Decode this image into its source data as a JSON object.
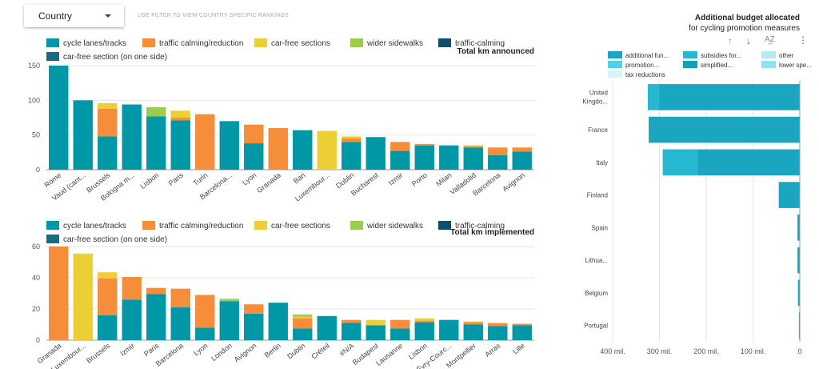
{
  "filter": {
    "label": "Country",
    "hint": "USE FILTER TO VIEW COUNTRY SPECIFIC RANKINGS"
  },
  "colors": {
    "cycle": "#0097a7",
    "calming": "#f68d3b",
    "carfree": "#ecce35",
    "sidewalks": "#9ccc4d",
    "tcalming": "#0d4f6b",
    "oneside": "#1a6a86"
  },
  "legend_bar": [
    {
      "label": "cycle lanes/tracks",
      "key": "cycle"
    },
    {
      "label": "traffic calming/reduction",
      "key": "calming"
    },
    {
      "label": "car-free sections",
      "key": "carfree"
    },
    {
      "label": "wider sidewalks",
      "key": "sidewalks"
    },
    {
      "label": "traffic-calming",
      "key": "tcalming"
    },
    {
      "label": "car-free section (on one side)",
      "key": "oneside"
    }
  ],
  "chart_data": [
    {
      "type": "bar",
      "stacked": true,
      "title": "Total km announced",
      "ylim": [
        0,
        150
      ],
      "yticks": [
        0,
        50,
        100,
        150
      ],
      "categories": [
        "Rome",
        "Vaud (cant...",
        "Brussels",
        "Bologna m...",
        "Lisbon",
        "Paris",
        "Turin",
        "Barcelona...",
        "Lyon",
        "Granada",
        "Bari",
        "Luxembour...",
        "Dublin",
        "Bucharest",
        "Izmir",
        "Porto",
        "Milan",
        "Valladolid",
        "Barcelona",
        "Avignon"
      ],
      "series": [
        {
          "name": "cycle lanes/tracks",
          "key": "cycle",
          "values": [
            150,
            100,
            48,
            94,
            77,
            71,
            0,
            70,
            38,
            0,
            57,
            0,
            40,
            47,
            27,
            35,
            35,
            32,
            21,
            26
          ]
        },
        {
          "name": "traffic calming/reduction",
          "key": "calming",
          "values": [
            0,
            0,
            40,
            0,
            0,
            4,
            80,
            0,
            27,
            60,
            0,
            0,
            5,
            0,
            13,
            2,
            0,
            2,
            11,
            6
          ]
        },
        {
          "name": "car-free sections",
          "key": "carfree",
          "values": [
            0,
            0,
            8,
            0,
            0,
            10,
            0,
            0,
            0,
            0,
            0,
            56,
            3,
            0,
            0,
            0,
            0,
            1,
            0,
            0
          ]
        },
        {
          "name": "wider sidewalks",
          "key": "sidewalks",
          "values": [
            0,
            0,
            0,
            0,
            13,
            0,
            0,
            0,
            0,
            0,
            0,
            0,
            0,
            0,
            0,
            0,
            0,
            0,
            0,
            0
          ]
        }
      ]
    },
    {
      "type": "bar",
      "stacked": true,
      "title": "Total km implemented",
      "ylim": [
        0,
        60
      ],
      "yticks": [
        0,
        20,
        40,
        60
      ],
      "categories": [
        "Granada",
        "Luxembour...",
        "Brussels",
        "Izmir",
        "Paris",
        "Barcelona",
        "Lyon",
        "London",
        "Avignon",
        "Berlin",
        "Dublin",
        "Créteil",
        "#N/A",
        "Budapest",
        "Lausanne",
        "Lisbon",
        "Évry-Courc...",
        "Montpellier",
        "Arras",
        "Lille"
      ],
      "series": [
        {
          "name": "cycle lanes/tracks",
          "key": "cycle",
          "values": [
            0,
            0,
            16,
            26,
            29.5,
            21,
            8,
            25,
            17,
            24,
            7.5,
            15.5,
            11,
            9.5,
            7.5,
            11.5,
            13,
            10,
            9,
            9.5
          ]
        },
        {
          "name": "traffic calming/reduction",
          "key": "calming",
          "values": [
            60,
            0,
            23.5,
            14.5,
            4,
            12,
            21,
            0,
            6,
            0,
            6.5,
            0,
            2,
            0,
            5.5,
            1,
            0,
            1.5,
            2,
            1
          ]
        },
        {
          "name": "car-free sections",
          "key": "carfree",
          "values": [
            0,
            55.5,
            4,
            0,
            0,
            0,
            0,
            0,
            0,
            0,
            1,
            0,
            0,
            3.5,
            0,
            1.5,
            0,
            0.5,
            0,
            0
          ]
        },
        {
          "name": "wider sidewalks",
          "key": "sidewalks",
          "values": [
            0,
            0,
            0,
            0,
            0,
            0,
            0,
            1.5,
            0,
            0,
            1.5,
            0,
            0,
            0,
            0,
            0,
            0,
            0,
            0,
            0
          ]
        }
      ]
    },
    {
      "type": "bar",
      "orientation": "horizontal",
      "stacked": true,
      "title": "Additional budget allocated",
      "subtitle": "for cycling promotion measures",
      "xlim": [
        0,
        400
      ],
      "xticks": [
        400,
        300,
        200,
        100,
        0
      ],
      "xtick_labels": [
        "400 mil.",
        "300 mil.",
        "200 mil.",
        "100 mil.",
        "0"
      ],
      "legend": [
        {
          "label": "additional fun...",
          "color": "#1aa6c0"
        },
        {
          "label": "subsidies for...",
          "color": "#26b8d0"
        },
        {
          "label": "other",
          "color": "#b8e9f2"
        },
        {
          "label": "promotion...",
          "color": "#4fd0e6"
        },
        {
          "label": "simplified...",
          "color": "#11a0b8"
        },
        {
          "label": "lower spe...",
          "color": "#8fe4f2"
        },
        {
          "label": "tax reductions",
          "color": "#d8f4f9"
        }
      ],
      "categories": [
        "United Kingdo...",
        "France",
        "Italy",
        "Finland",
        "Spain",
        "Lithua...",
        "Belgium",
        "Portugal"
      ],
      "series": [
        {
          "name": "additional fun...",
          "color": "#1aa6c0",
          "values": [
            300,
            323,
            218,
            45,
            5,
            5,
            4,
            2
          ]
        },
        {
          "name": "subsidies for...",
          "color": "#26b8d0",
          "values": [
            25,
            0,
            75,
            0,
            0,
            0,
            0,
            0
          ]
        }
      ]
    }
  ]
}
